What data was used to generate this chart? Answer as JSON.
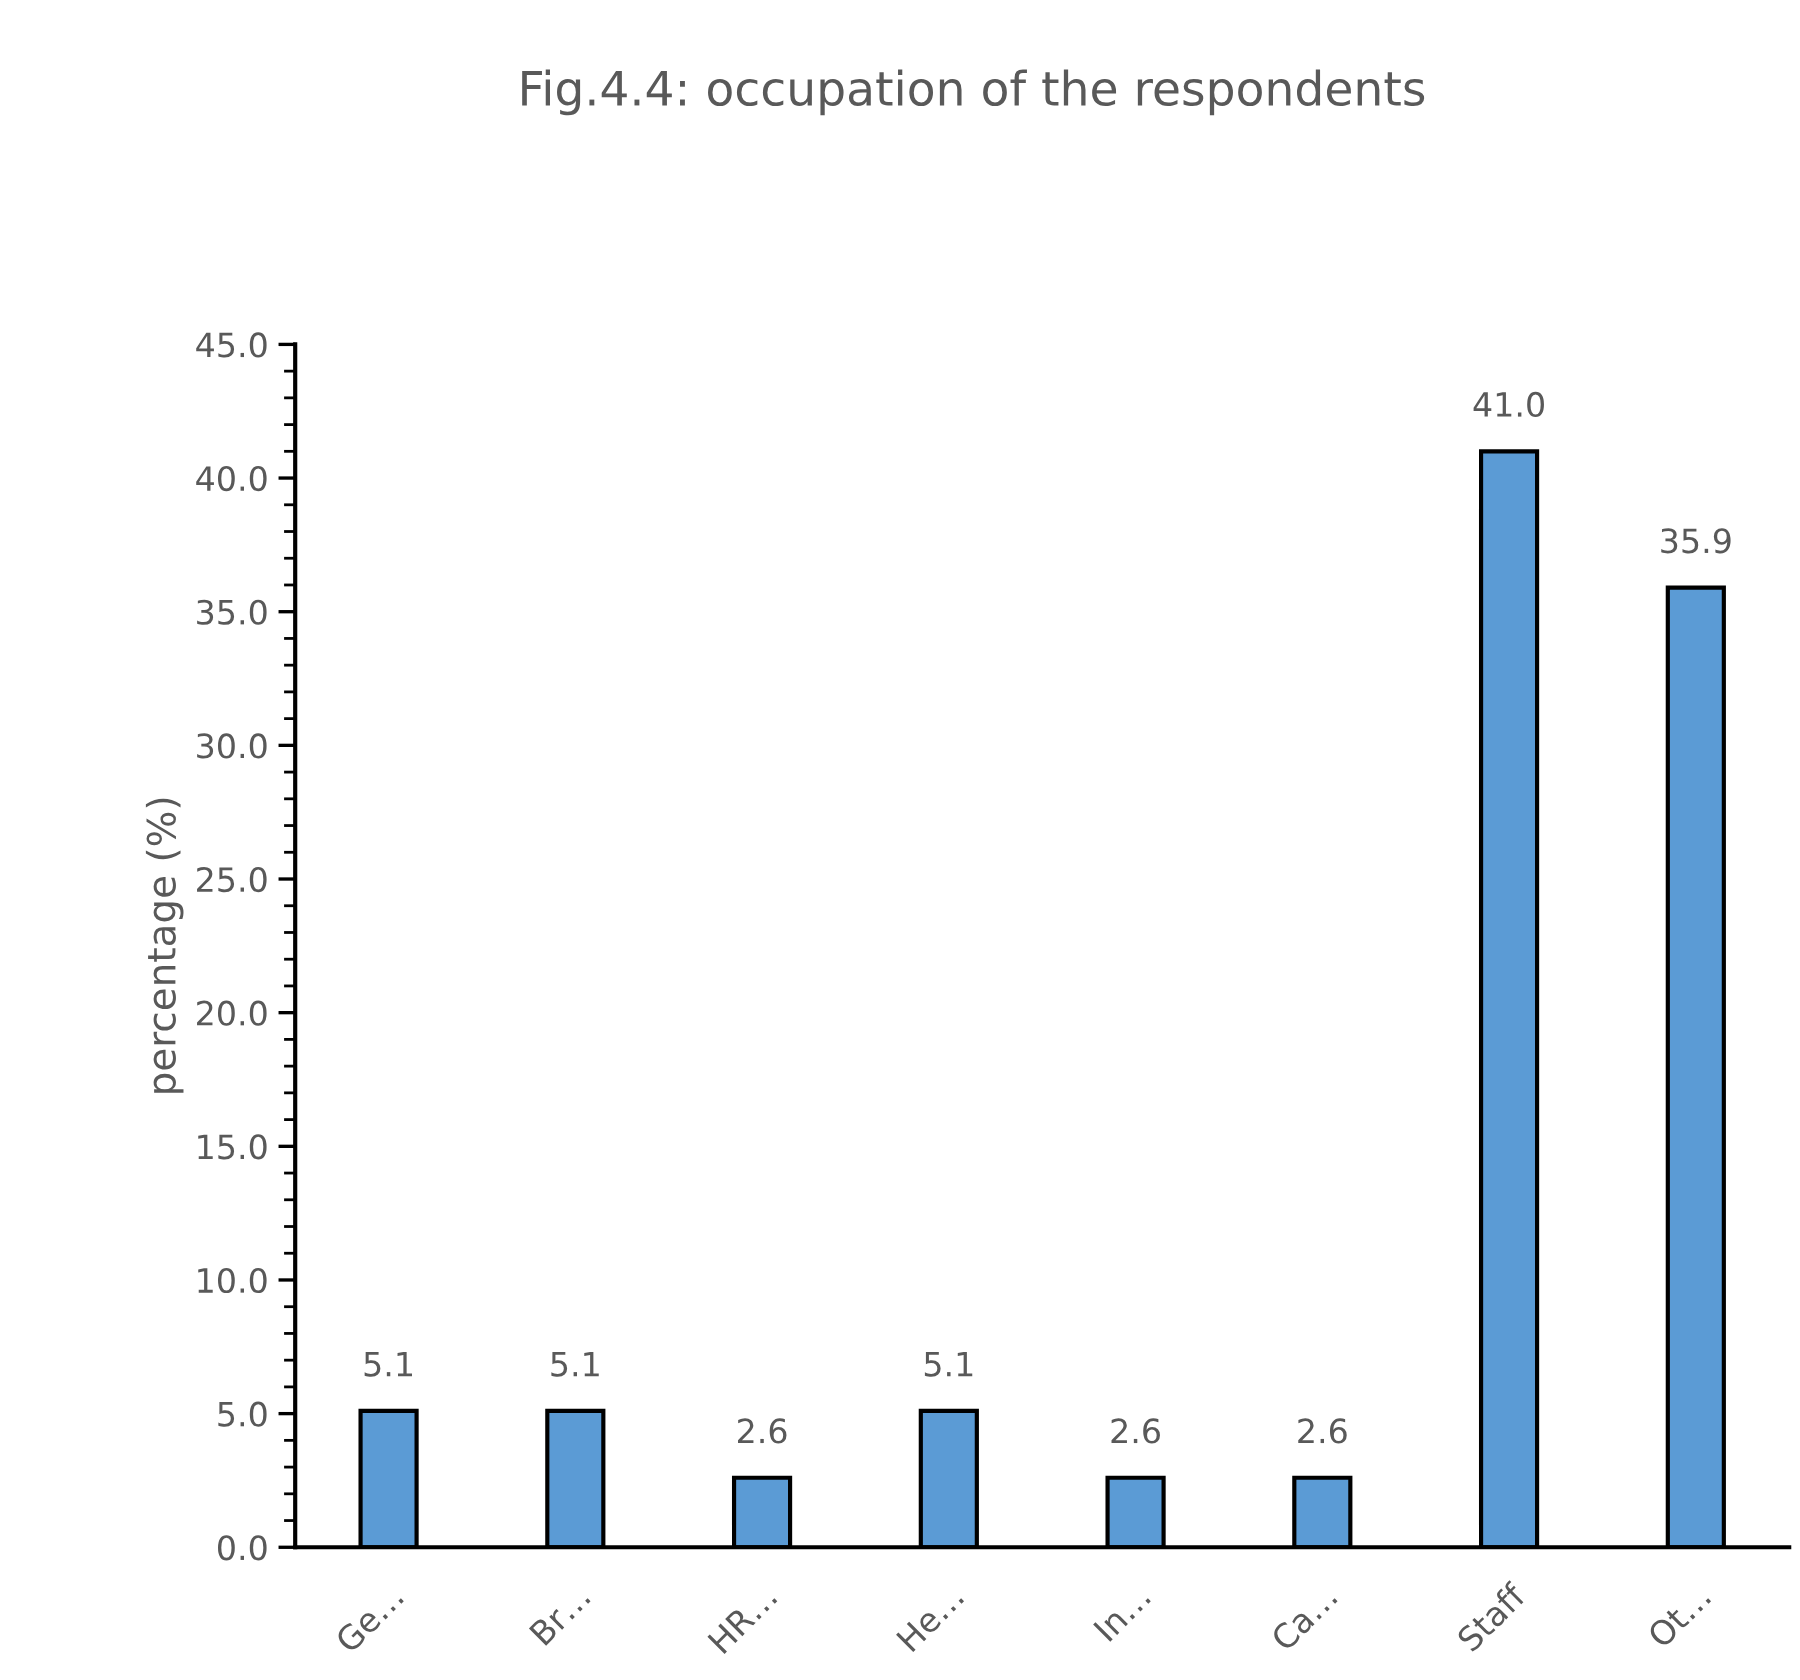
{
  "chart_data": {
    "type": "bar",
    "title": "Fig.4.4: occupation of the respondents",
    "ylabel": "percentage (%)",
    "categories": [
      "Ge…",
      "Br…",
      "HR…",
      "He…",
      "In…",
      "Ca…",
      "Staff",
      "Ot…"
    ],
    "values": [
      5.1,
      5.1,
      2.6,
      5.1,
      2.6,
      2.6,
      41.0,
      35.9
    ],
    "value_labels": [
      "5.1",
      "5.1",
      "2.6",
      "5.1",
      "2.6",
      "2.6",
      "41.0",
      "35.9"
    ],
    "color": "#5b9bd5",
    "ylim": [
      0,
      45
    ],
    "yticks": [
      {
        "value": 0,
        "label": "0.0"
      },
      {
        "value": 5,
        "label": "5.0"
      },
      {
        "value": 10,
        "label": "10.0"
      },
      {
        "value": 15,
        "label": "15.0"
      },
      {
        "value": 20,
        "label": "20.0"
      },
      {
        "value": 25,
        "label": "25.0"
      },
      {
        "value": 30,
        "label": "30.0"
      },
      {
        "value": 35,
        "label": "35.0"
      },
      {
        "value": 40,
        "label": "40.0"
      },
      {
        "value": 45,
        "label": "45.0"
      }
    ],
    "grid": false,
    "legend": false
  }
}
